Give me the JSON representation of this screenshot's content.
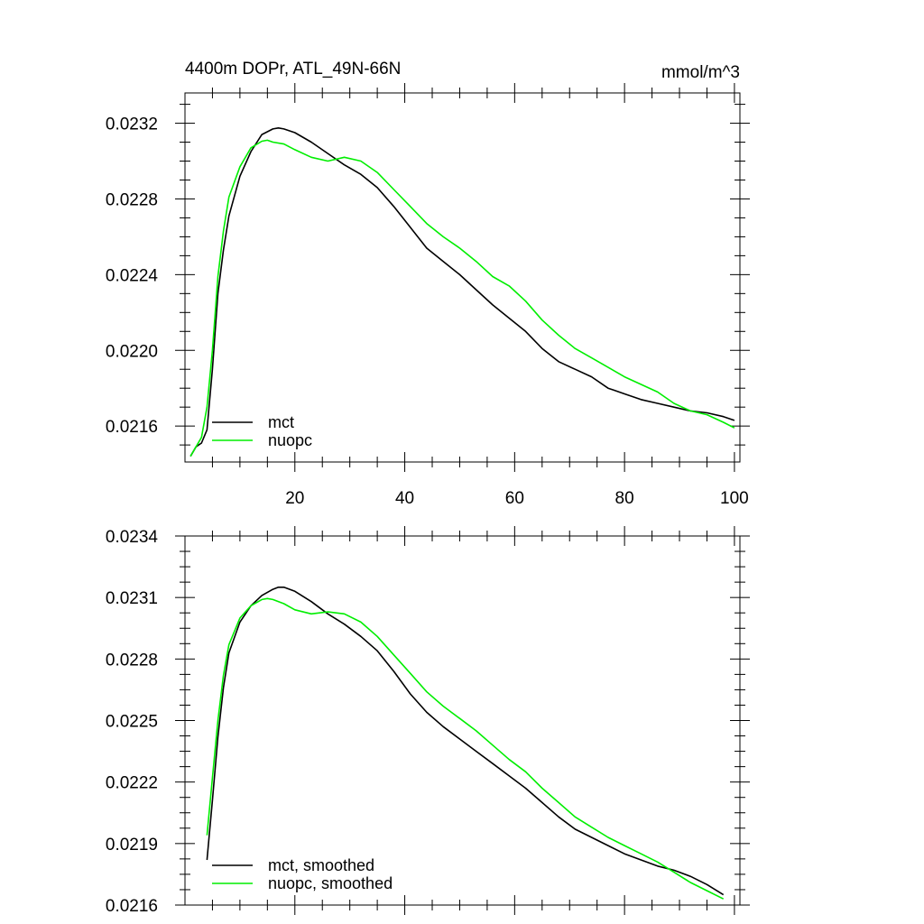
{
  "figure": {
    "title_left": "4400m DOPr, ATL_49N-66N",
    "title_right": "mmol/m^3"
  },
  "chart_data": [
    {
      "type": "line",
      "panel": "top",
      "title": "4400m DOPr, ATL_49N-66N",
      "units": "mmol/m^3",
      "xlabel": "",
      "ylabel": "",
      "xlim": [
        0,
        101
      ],
      "ylim": [
        0.02141,
        0.02336
      ],
      "xticks": [
        20,
        40,
        60,
        80,
        100
      ],
      "xtick_labels": [
        "20",
        "40",
        "60",
        "80",
        "100"
      ],
      "yticks": [
        0.0216,
        0.022,
        0.0224,
        0.0228,
        0.0232
      ],
      "ytick_labels": [
        "0.0216",
        "0.0220",
        "0.0224",
        "0.0228",
        "0.0232"
      ],
      "grid": false,
      "legend_position": "bottom-left",
      "series": [
        {
          "name": "mct",
          "color": "#000000",
          "x": [
            1,
            2,
            3,
            4,
            5,
            6,
            7,
            8,
            10,
            12,
            14,
            16,
            17,
            18,
            20,
            23,
            26,
            29,
            32,
            35,
            38,
            41,
            44,
            47,
            50,
            53,
            56,
            59,
            62,
            65,
            68,
            71,
            74,
            77,
            78,
            80,
            83,
            86,
            89,
            92,
            95,
            98,
            100
          ],
          "y": [
            0.02144,
            0.02149,
            0.02151,
            0.02158,
            0.0219,
            0.0223,
            0.02253,
            0.02271,
            0.02292,
            0.02305,
            0.02314,
            0.02317,
            0.023175,
            0.02317,
            0.02315,
            0.0231,
            0.02304,
            0.02298,
            0.02293,
            0.02286,
            0.02276,
            0.02265,
            0.02254,
            0.02247,
            0.0224,
            0.02232,
            0.02224,
            0.02217,
            0.0221,
            0.02201,
            0.02194,
            0.0219,
            0.02186,
            0.0218,
            0.02179,
            0.02177,
            0.02174,
            0.02172,
            0.0217,
            0.02168,
            0.02167,
            0.02165,
            0.02163
          ]
        },
        {
          "name": "nuopc",
          "color": "#00ee00",
          "x": [
            1,
            2,
            3,
            4,
            5,
            6,
            7,
            8,
            10,
            12,
            14,
            15,
            16,
            18,
            20,
            23,
            26,
            29,
            32,
            35,
            38,
            41,
            44,
            47,
            50,
            53,
            56,
            59,
            62,
            65,
            68,
            71,
            74,
            77,
            80,
            83,
            86,
            89,
            92,
            95,
            98,
            100
          ],
          "y": [
            0.02144,
            0.02149,
            0.02154,
            0.0217,
            0.022,
            0.02239,
            0.02263,
            0.02281,
            0.02297,
            0.02307,
            0.023105,
            0.02311,
            0.0231,
            0.02309,
            0.02306,
            0.02302,
            0.023,
            0.02302,
            0.023,
            0.02294,
            0.02285,
            0.02276,
            0.02267,
            0.0226,
            0.02254,
            0.02247,
            0.02239,
            0.02234,
            0.02226,
            0.02216,
            0.02208,
            0.02201,
            0.02196,
            0.02191,
            0.02186,
            0.02182,
            0.02178,
            0.02172,
            0.02168,
            0.02166,
            0.02162,
            0.02159
          ]
        }
      ]
    },
    {
      "type": "line",
      "panel": "bottom",
      "title": "",
      "xlabel": "",
      "ylabel": "",
      "xlim": [
        0,
        101
      ],
      "ylim": [
        0.0216,
        0.0234
      ],
      "xticks": [
        20,
        40,
        60,
        80,
        100
      ],
      "yticks": [
        0.0216,
        0.0219,
        0.0222,
        0.0225,
        0.0228,
        0.0231,
        0.0234
      ],
      "ytick_labels": [
        "0.0216",
        "0.0219",
        "0.0222",
        "0.0225",
        "0.0228",
        "0.0231",
        "0.0234"
      ],
      "grid": false,
      "legend_position": "bottom-left",
      "series": [
        {
          "name": "mct, smoothed",
          "color": "#000000",
          "x": [
            4,
            5,
            6,
            7,
            8,
            10,
            12,
            14,
            16,
            17,
            18,
            20,
            23,
            26,
            29,
            32,
            35,
            38,
            41,
            44,
            47,
            50,
            53,
            56,
            59,
            62,
            65,
            68,
            71,
            74,
            77,
            80,
            83,
            86,
            89,
            92,
            95,
            98
          ],
          "y": [
            0.02182,
            0.02211,
            0.02242,
            0.02266,
            0.02283,
            0.02298,
            0.02306,
            0.02311,
            0.02314,
            0.02315,
            0.02315,
            0.02313,
            0.02308,
            0.02302,
            0.02297,
            0.02291,
            0.02284,
            0.02274,
            0.02263,
            0.02254,
            0.02247,
            0.02241,
            0.02235,
            0.02229,
            0.02223,
            0.02217,
            0.0221,
            0.02203,
            0.02197,
            0.02193,
            0.02189,
            0.02185,
            0.02182,
            0.02179,
            0.02177,
            0.02174,
            0.0217,
            0.02165
          ]
        },
        {
          "name": "nuopc, smoothed",
          "color": "#00ee00",
          "x": [
            4,
            5,
            6,
            7,
            8,
            10,
            12,
            14,
            15,
            16,
            18,
            20,
            23,
            26,
            29,
            32,
            35,
            38,
            41,
            44,
            47,
            50,
            53,
            56,
            59,
            62,
            65,
            68,
            71,
            74,
            77,
            80,
            83,
            86,
            89,
            92,
            95,
            98
          ],
          "y": [
            0.02194,
            0.02222,
            0.0225,
            0.02272,
            0.02287,
            0.023,
            0.02306,
            0.02309,
            0.023095,
            0.02309,
            0.02307,
            0.02304,
            0.02302,
            0.02303,
            0.02302,
            0.02298,
            0.02291,
            0.02282,
            0.02273,
            0.02264,
            0.02257,
            0.02251,
            0.02245,
            0.02238,
            0.02231,
            0.02225,
            0.02217,
            0.0221,
            0.02203,
            0.02198,
            0.02193,
            0.02189,
            0.02185,
            0.02181,
            0.02176,
            0.02171,
            0.02167,
            0.02163
          ]
        }
      ]
    }
  ]
}
